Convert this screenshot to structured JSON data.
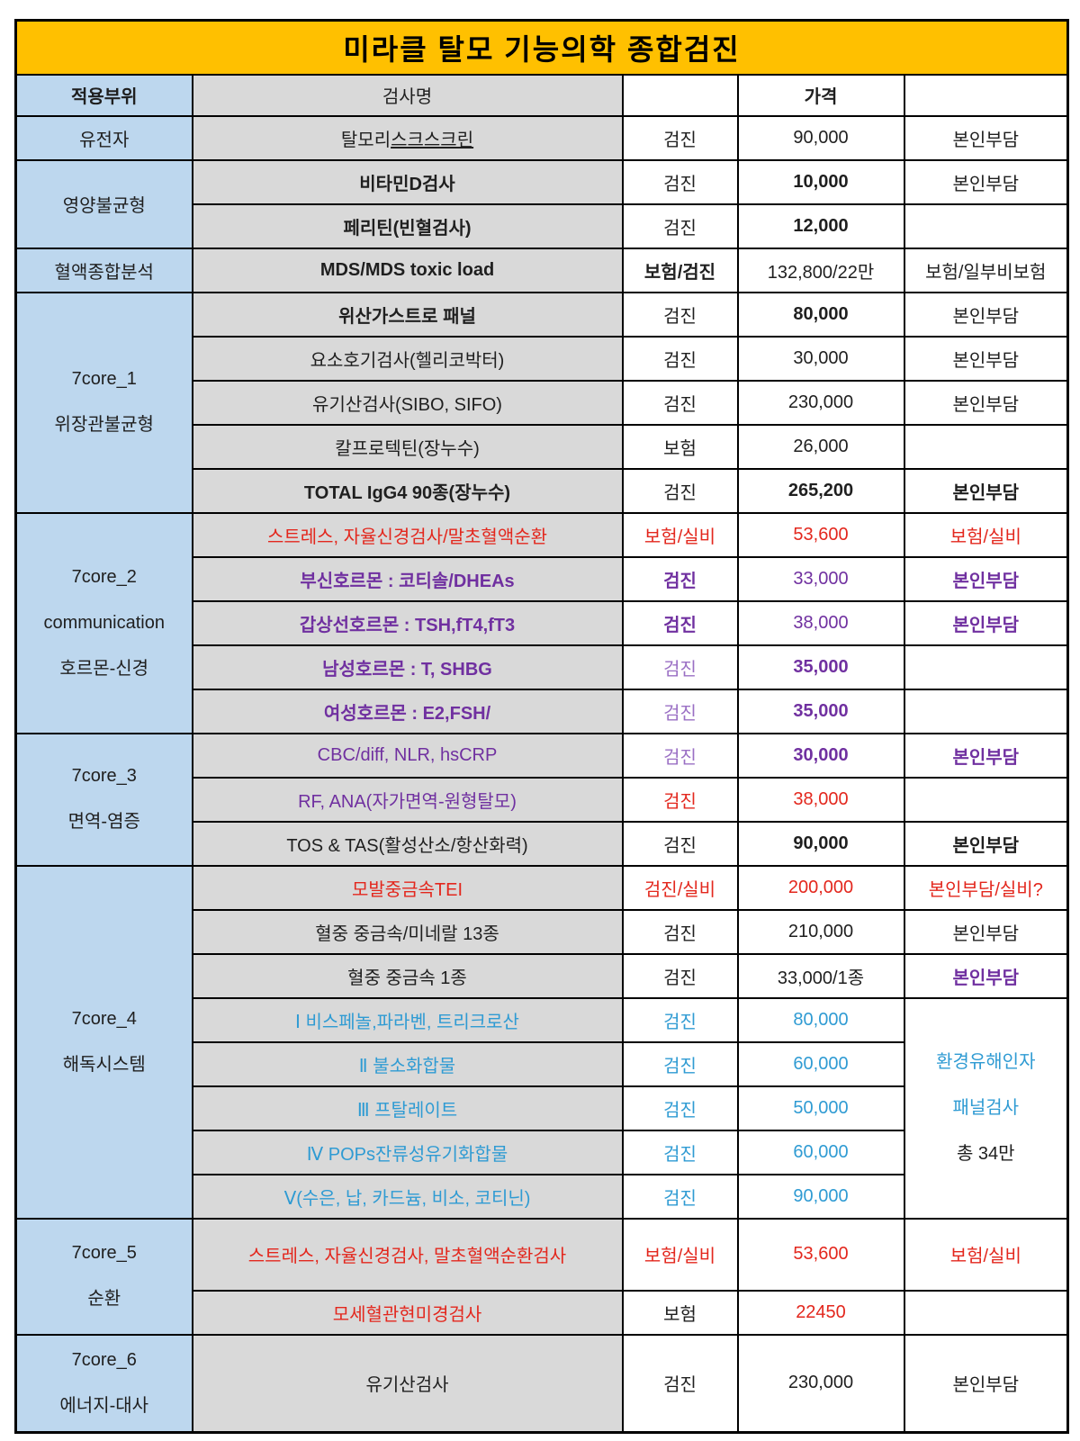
{
  "title": "미라클 탈모 기능의학 종합검진",
  "colors": {
    "title_bg": "#FFC000",
    "area_column_bg": "#BDD7EE",
    "test_name_column_bg": "#D9D9D9",
    "red_text": "#E3271D",
    "purple_text": "#7030A0",
    "light_purple_text": "#9A6FC4",
    "blue_text": "#2F9BD3",
    "border": "#000000"
  },
  "table": {
    "header": [
      {
        "col": 0,
        "t": "적용부위",
        "bg": "area",
        "b": true
      },
      {
        "col": 1,
        "t": "검사명",
        "bg": "name"
      },
      {
        "col": 2,
        "t": ""
      },
      {
        "col": 3,
        "t": "가격",
        "b": true
      },
      {
        "col": 4,
        "t": ""
      }
    ],
    "rows": [
      {
        "cells": [
          {
            "col": 0,
            "t": "유전자",
            "bg": "area"
          },
          {
            "col": 1,
            "seg": [
              {
                "t": "탈모리"
              },
              {
                "t": "스크스크린",
                "u": true
              }
            ],
            "bg": "name"
          },
          {
            "col": 2,
            "t": "검진"
          },
          {
            "col": 3,
            "t": "90,000"
          },
          {
            "col": 4,
            "t": "본인부담"
          }
        ]
      },
      {
        "cells": [
          {
            "col": 0,
            "t": "영양불균형",
            "bg": "area",
            "rs": 2
          },
          {
            "col": 1,
            "t": "비타민D검사",
            "bg": "name",
            "b": true
          },
          {
            "col": 2,
            "t": "검진"
          },
          {
            "col": 3,
            "t": "10,000",
            "b": true
          },
          {
            "col": 4,
            "t": "본인부담"
          }
        ]
      },
      {
        "cells": [
          {
            "col": 1,
            "t": "페리틴(빈혈검사)",
            "bg": "name",
            "b": true
          },
          {
            "col": 2,
            "t": "검진"
          },
          {
            "col": 3,
            "t": "12,000",
            "b": true
          },
          {
            "col": 4,
            "t": ""
          }
        ]
      },
      {
        "cells": [
          {
            "col": 0,
            "t": "혈액종합분석",
            "bg": "area"
          },
          {
            "col": 1,
            "t": "MDS/MDS toxic load",
            "bg": "name",
            "b": true
          },
          {
            "col": 2,
            "t": "보험/검진",
            "b": true
          },
          {
            "col": 3,
            "t": "132,800/22만"
          },
          {
            "col": 4,
            "t": "보험/일부비보험"
          }
        ]
      },
      {
        "cells": [
          {
            "col": 0,
            "lines": [
              "7core_1",
              "위장관불균형"
            ],
            "bg": "area",
            "rs": 5
          },
          {
            "col": 1,
            "t": "위산가스트로 패널",
            "bg": "name",
            "b": true
          },
          {
            "col": 2,
            "t": "검진"
          },
          {
            "col": 3,
            "t": "80,000",
            "b": true
          },
          {
            "col": 4,
            "t": "본인부담"
          }
        ]
      },
      {
        "cells": [
          {
            "col": 1,
            "t": "요소호기검사(헬리코박터)",
            "bg": "name"
          },
          {
            "col": 2,
            "t": "검진"
          },
          {
            "col": 3,
            "t": "30,000"
          },
          {
            "col": 4,
            "t": "본인부담"
          }
        ]
      },
      {
        "cells": [
          {
            "col": 1,
            "t": "유기산검사(SIBO, SIFO)",
            "bg": "name"
          },
          {
            "col": 2,
            "t": "검진"
          },
          {
            "col": 3,
            "t": "230,000"
          },
          {
            "col": 4,
            "t": "본인부담"
          }
        ]
      },
      {
        "cells": [
          {
            "col": 1,
            "t": "칼프로텍틴(장누수)",
            "bg": "name"
          },
          {
            "col": 2,
            "t": "보험"
          },
          {
            "col": 3,
            "t": "26,000"
          },
          {
            "col": 4,
            "t": ""
          }
        ]
      },
      {
        "cells": [
          {
            "col": 1,
            "t": "TOTAL IgG4 90종(장누수)",
            "bg": "name",
            "b": true
          },
          {
            "col": 2,
            "t": "검진"
          },
          {
            "col": 3,
            "t": "265,200",
            "b": true
          },
          {
            "col": 4,
            "t": "본인부담",
            "b": true
          }
        ]
      },
      {
        "cells": [
          {
            "col": 0,
            "lines": [
              "7core_2",
              "communication",
              "호르몬-신경"
            ],
            "bg": "area",
            "rs": 5
          },
          {
            "col": 1,
            "t": "스트레스, 자율신경검사/말초혈액순환",
            "bg": "name",
            "c": "red"
          },
          {
            "col": 2,
            "t": "보험/실비",
            "c": "red"
          },
          {
            "col": 3,
            "t": "53,600",
            "c": "red"
          },
          {
            "col": 4,
            "t": "보험/실비",
            "c": "red"
          }
        ]
      },
      {
        "cells": [
          {
            "col": 1,
            "t": "부신호르몬 : 코티솔/DHEAs",
            "bg": "name",
            "c": "purple",
            "b": true
          },
          {
            "col": 2,
            "t": "검진",
            "c": "purple",
            "b": true
          },
          {
            "col": 3,
            "t": "33,000",
            "c": "purple"
          },
          {
            "col": 4,
            "t": "본인부담",
            "c": "purple",
            "b": true
          }
        ]
      },
      {
        "cells": [
          {
            "col": 1,
            "t": "갑상선호르몬 : TSH,fT4,fT3",
            "bg": "name",
            "c": "purple",
            "b": true
          },
          {
            "col": 2,
            "t": "검진",
            "c": "purple",
            "b": true
          },
          {
            "col": 3,
            "t": "38,000",
            "c": "purple"
          },
          {
            "col": 4,
            "t": "본인부담",
            "c": "purple",
            "b": true
          }
        ]
      },
      {
        "cells": [
          {
            "col": 1,
            "t": "남성호르몬 : T, SHBG",
            "bg": "name",
            "c": "purple",
            "b": true
          },
          {
            "col": 2,
            "t": "검진",
            "c": "plight"
          },
          {
            "col": 3,
            "t": "35,000",
            "c": "purple",
            "b": true
          },
          {
            "col": 4,
            "t": ""
          }
        ]
      },
      {
        "cells": [
          {
            "col": 1,
            "t": "여성호르몬 : E2,FSH/",
            "bg": "name",
            "c": "purple",
            "b": true
          },
          {
            "col": 2,
            "t": "검진",
            "c": "plight"
          },
          {
            "col": 3,
            "t": "35,000",
            "c": "purple",
            "b": true
          },
          {
            "col": 4,
            "t": ""
          }
        ]
      },
      {
        "cells": [
          {
            "col": 0,
            "lines": [
              "7core_3",
              "면역-염증"
            ],
            "bg": "area",
            "rs": 3
          },
          {
            "col": 1,
            "t": "CBC/diff, NLR, hsCRP",
            "bg": "name",
            "c": "purple"
          },
          {
            "col": 2,
            "t": "검진",
            "c": "plight"
          },
          {
            "col": 3,
            "t": "30,000",
            "c": "purple",
            "b": true
          },
          {
            "col": 4,
            "t": "본인부담",
            "c": "purple",
            "b": true
          }
        ]
      },
      {
        "cells": [
          {
            "col": 1,
            "t": "RF, ANA(자가면역-원형탈모)",
            "bg": "name",
            "c": "purple"
          },
          {
            "col": 2,
            "t": "검진",
            "c": "red"
          },
          {
            "col": 3,
            "t": "38,000",
            "c": "red"
          },
          {
            "col": 4,
            "t": ""
          }
        ]
      },
      {
        "cells": [
          {
            "col": 1,
            "t": "TOS & TAS(활성산소/항산화력)",
            "bg": "name"
          },
          {
            "col": 2,
            "t": "검진"
          },
          {
            "col": 3,
            "t": "90,000",
            "b": true
          },
          {
            "col": 4,
            "t": "본인부담",
            "b": true
          }
        ]
      },
      {
        "cells": [
          {
            "col": 0,
            "lines": [
              "7core_4",
              "해독시스템"
            ],
            "bg": "area",
            "rs": 8
          },
          {
            "col": 1,
            "t": "모발중금속TEI",
            "bg": "name",
            "c": "red"
          },
          {
            "col": 2,
            "t": "검진/실비",
            "c": "red"
          },
          {
            "col": 3,
            "t": "200,000",
            "c": "red"
          },
          {
            "col": 4,
            "t": "본인부담/실비?",
            "c": "red"
          }
        ]
      },
      {
        "cells": [
          {
            "col": 1,
            "t": "혈중 중금속/미네랄 13종",
            "bg": "name"
          },
          {
            "col": 2,
            "t": "검진"
          },
          {
            "col": 3,
            "t": "210,000"
          },
          {
            "col": 4,
            "t": "본인부담"
          }
        ]
      },
      {
        "cells": [
          {
            "col": 1,
            "t": "혈중 중금속 1종",
            "bg": "name"
          },
          {
            "col": 2,
            "t": "검진"
          },
          {
            "col": 3,
            "t": "33,000/1종"
          },
          {
            "col": 4,
            "t": "본인부담",
            "c": "purple",
            "b": true
          }
        ]
      },
      {
        "cells": [
          {
            "col": 1,
            "t": "Ⅰ 비스페놀,파라벤, 트리크로산",
            "bg": "name",
            "c": "blue"
          },
          {
            "col": 2,
            "t": "검진",
            "c": "blue"
          },
          {
            "col": 3,
            "t": "80,000",
            "c": "blue"
          },
          {
            "col": 4,
            "lines": [
              {
                "t": "환경유해인자",
                "c": "blue"
              },
              {
                "t": "패널검사",
                "c": "blue"
              },
              {
                "t": "총 34만"
              }
            ],
            "rs": 5
          }
        ]
      },
      {
        "cells": [
          {
            "col": 1,
            "t": "Ⅱ 불소화합물",
            "bg": "name",
            "c": "blue"
          },
          {
            "col": 2,
            "t": "검진",
            "c": "blue"
          },
          {
            "col": 3,
            "t": "60,000",
            "c": "blue"
          }
        ]
      },
      {
        "cells": [
          {
            "col": 1,
            "t": "Ⅲ 프탈레이트",
            "bg": "name",
            "c": "blue"
          },
          {
            "col": 2,
            "t": "검진",
            "c": "blue"
          },
          {
            "col": 3,
            "t": "50,000",
            "c": "blue"
          }
        ]
      },
      {
        "cells": [
          {
            "col": 1,
            "t": "Ⅳ POPs잔류성유기화합물",
            "bg": "name",
            "c": "blue"
          },
          {
            "col": 2,
            "t": "검진",
            "c": "blue"
          },
          {
            "col": 3,
            "t": "60,000",
            "c": "blue"
          }
        ]
      },
      {
        "cells": [
          {
            "col": 1,
            "t": "Ⅴ(수은, 납, 카드늄, 비소, 코티닌)",
            "bg": "name",
            "c": "blue"
          },
          {
            "col": 2,
            "t": "검진",
            "c": "blue"
          },
          {
            "col": 3,
            "t": "90,000",
            "c": "blue"
          }
        ]
      },
      {
        "cls": "tall",
        "cells": [
          {
            "col": 0,
            "lines": [
              "7core_5",
              "순환"
            ],
            "bg": "area",
            "rs": 2
          },
          {
            "col": 1,
            "t": "스트레스, 자율신경검사, 말초혈액순환검사",
            "bg": "name",
            "c": "red"
          },
          {
            "col": 2,
            "t": "보험/실비",
            "c": "red"
          },
          {
            "col": 3,
            "t": "53,600",
            "c": "red"
          },
          {
            "col": 4,
            "t": "보험/실비",
            "c": "red"
          }
        ]
      },
      {
        "cells": [
          {
            "col": 1,
            "t": "모세혈관현미경검사",
            "bg": "name",
            "c": "red"
          },
          {
            "col": 2,
            "t": "보험"
          },
          {
            "col": 3,
            "t": "22450",
            "c": "red"
          },
          {
            "col": 4,
            "t": ""
          }
        ]
      },
      {
        "cls": "xtall",
        "cells": [
          {
            "col": 0,
            "lines": [
              "7core_6",
              "에너지-대사"
            ],
            "bg": "area"
          },
          {
            "col": 1,
            "t": "유기산검사",
            "bg": "name"
          },
          {
            "col": 2,
            "t": "검진"
          },
          {
            "col": 3,
            "t": "230,000"
          },
          {
            "col": 4,
            "t": "본인부담"
          }
        ]
      }
    ]
  }
}
